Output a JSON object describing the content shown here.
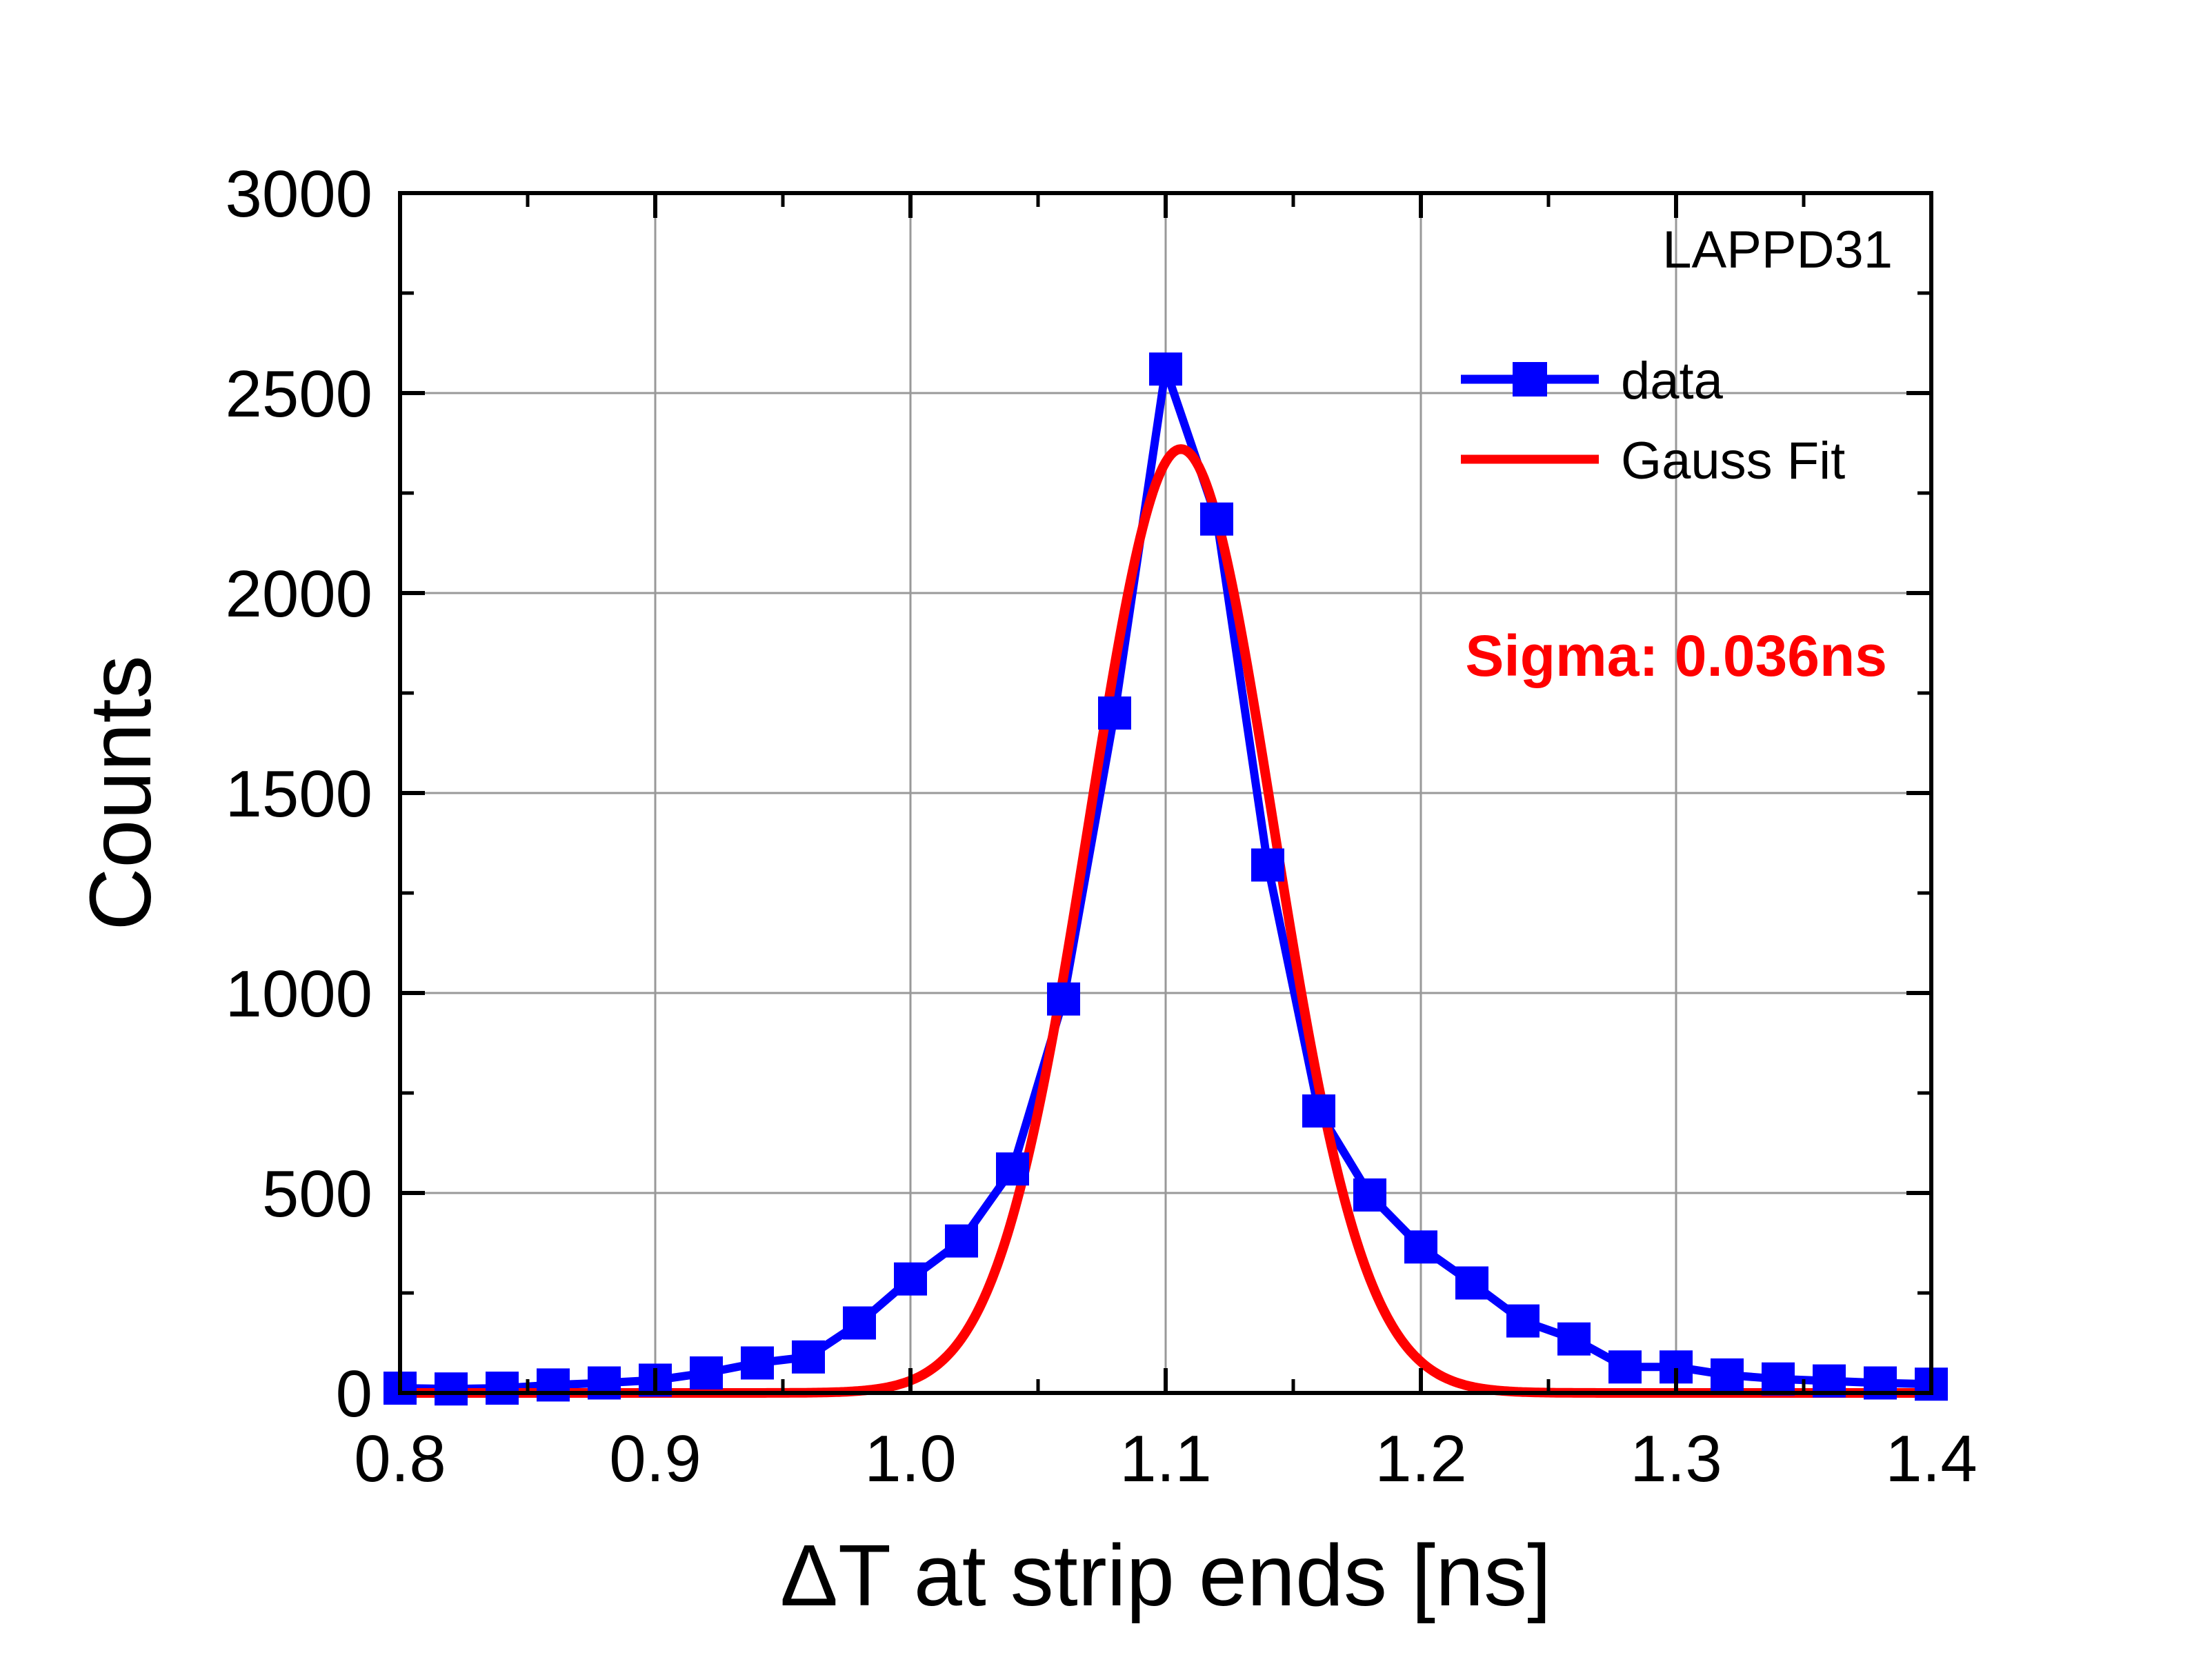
{
  "chart_data": {
    "type": "line",
    "title": "",
    "xlabel": "ΔT at strip ends [ns]",
    "ylabel": "Counts",
    "xlim": [
      0.8,
      1.4
    ],
    "ylim": [
      0,
      3000
    ],
    "x_ticks": [
      "0.8",
      "0.9",
      "1.0",
      "1.1",
      "1.2",
      "1.3",
      "1.4"
    ],
    "y_ticks": [
      "0",
      "500",
      "1000",
      "1500",
      "2000",
      "2500",
      "3000"
    ],
    "grid": true,
    "annotation_label": "LAPPD31",
    "sigma_text": "Sigma: 0.036ns",
    "legend_position": "top-right",
    "series": [
      {
        "name": "data",
        "color": "#0000ff",
        "marker": "square",
        "x": [
          0.8,
          0.82,
          0.84,
          0.86,
          0.88,
          0.9,
          0.92,
          0.94,
          0.96,
          0.98,
          1.0,
          1.02,
          1.04,
          1.06,
          1.08,
          1.1,
          1.12,
          1.14,
          1.16,
          1.18,
          1.2,
          1.22,
          1.24,
          1.26,
          1.28,
          1.3,
          1.32,
          1.34,
          1.36,
          1.38,
          1.4
        ],
        "values": [
          12,
          10,
          12,
          20,
          25,
          32,
          50,
          75,
          90,
          175,
          285,
          380,
          560,
          985,
          1700,
          2560,
          2185,
          1320,
          705,
          495,
          365,
          275,
          180,
          135,
          65,
          65,
          45,
          35,
          30,
          25,
          22
        ]
      },
      {
        "name": "Gauss Fit",
        "color": "#ff0000",
        "type": "gaussian",
        "amplitude": 2360,
        "center": 1.106,
        "sigma": 0.036
      }
    ]
  }
}
